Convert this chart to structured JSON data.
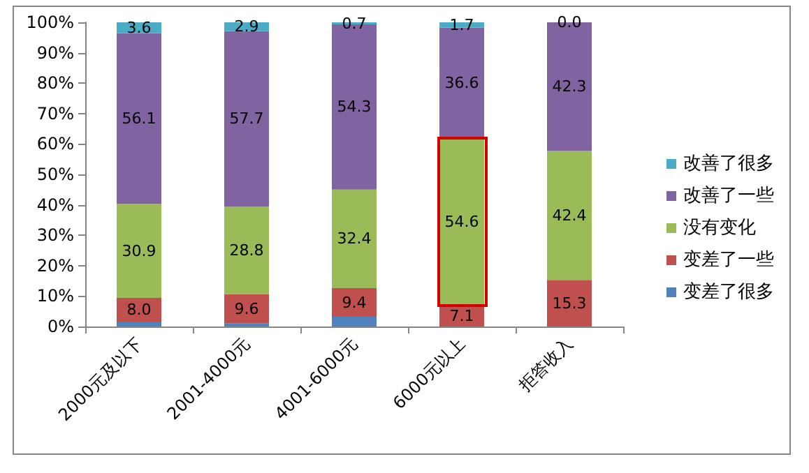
{
  "chart_data": {
    "type": "bar",
    "stacked": true,
    "categories": [
      "2000元及以下",
      "2001-4000元",
      "4001-6000元",
      "6000元以上",
      "拒答收入"
    ],
    "series": [
      {
        "name": "变差了很多",
        "color": "#4f81bd",
        "values": [
          1.4,
          1.0,
          3.2,
          0.0,
          0.0
        ]
      },
      {
        "name": "变差了一些",
        "color": "#c0504d",
        "values": [
          8.0,
          9.6,
          9.4,
          7.1,
          15.3
        ],
        "value_labels": [
          "8.0",
          "9.6",
          "9.4",
          "7.1",
          "15.3"
        ]
      },
      {
        "name": "没有变化",
        "color": "#9bbb59",
        "values": [
          30.9,
          28.8,
          32.4,
          54.6,
          42.4
        ],
        "value_labels": [
          "30.9",
          "28.8",
          "32.4",
          "54.6",
          "42.4"
        ]
      },
      {
        "name": "改善了一些",
        "color": "#8064a2",
        "values": [
          56.1,
          57.7,
          54.3,
          36.6,
          42.3
        ],
        "value_labels": [
          "56.1",
          "57.7",
          "54.3",
          "36.6",
          "42.3"
        ]
      },
      {
        "name": "改善了很多",
        "color": "#4bacc6",
        "values": [
          3.6,
          2.9,
          0.7,
          1.7,
          0.0
        ],
        "value_labels": [
          "3.6",
          "2.9",
          "0.7",
          "1.7",
          "0.0"
        ]
      }
    ],
    "ylim": [
      0,
      100
    ],
    "yticks": [
      {
        "value": 0,
        "label": "0%"
      },
      {
        "value": 10,
        "label": "10%"
      },
      {
        "value": 20,
        "label": "20%"
      },
      {
        "value": 30,
        "label": "30%"
      },
      {
        "value": 40,
        "label": "40%"
      },
      {
        "value": 50,
        "label": "50%"
      },
      {
        "value": 60,
        "label": "60%"
      },
      {
        "value": 70,
        "label": "70%"
      },
      {
        "value": 80,
        "label": "80%"
      },
      {
        "value": 90,
        "label": "90%"
      },
      {
        "value": 100,
        "label": "100%"
      }
    ],
    "grid": false,
    "legend": "right"
  }
}
